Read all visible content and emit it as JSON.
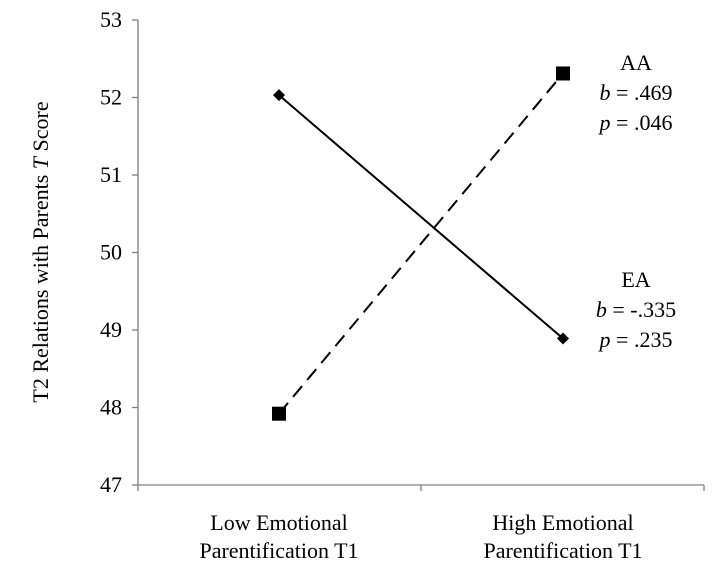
{
  "chart_data": {
    "type": "line",
    "title": "",
    "xlabel": "",
    "ylabel": {
      "pre": "T2 Relations with Parents ",
      "italic": "T",
      "post": " Score"
    },
    "categories": [
      [
        "Low Emotional",
        "Parentification T1"
      ],
      [
        "High Emotional",
        "Parentification T1"
      ]
    ],
    "ylim": [
      47,
      53
    ],
    "yticks": [
      "47",
      "48",
      "49",
      "50",
      "51",
      "52",
      "53"
    ],
    "grid": false,
    "series": [
      {
        "name": "EA",
        "values": [
          52.03,
          48.89
        ],
        "line": "solid",
        "marker": "diamond",
        "color": "#000000",
        "annotation": {
          "label": "EA",
          "b_sym": "b",
          "b_val": " = -.335",
          "p_sym": "p",
          "p_val": " = .235"
        }
      },
      {
        "name": "AA",
        "values": [
          47.92,
          52.31
        ],
        "line": "dashed",
        "marker": "square",
        "color": "#000000",
        "annotation": {
          "label": "AA",
          "b_sym": "b",
          "b_val": " = .469",
          "p_sym": "p",
          "p_val": " = .046"
        }
      }
    ]
  }
}
